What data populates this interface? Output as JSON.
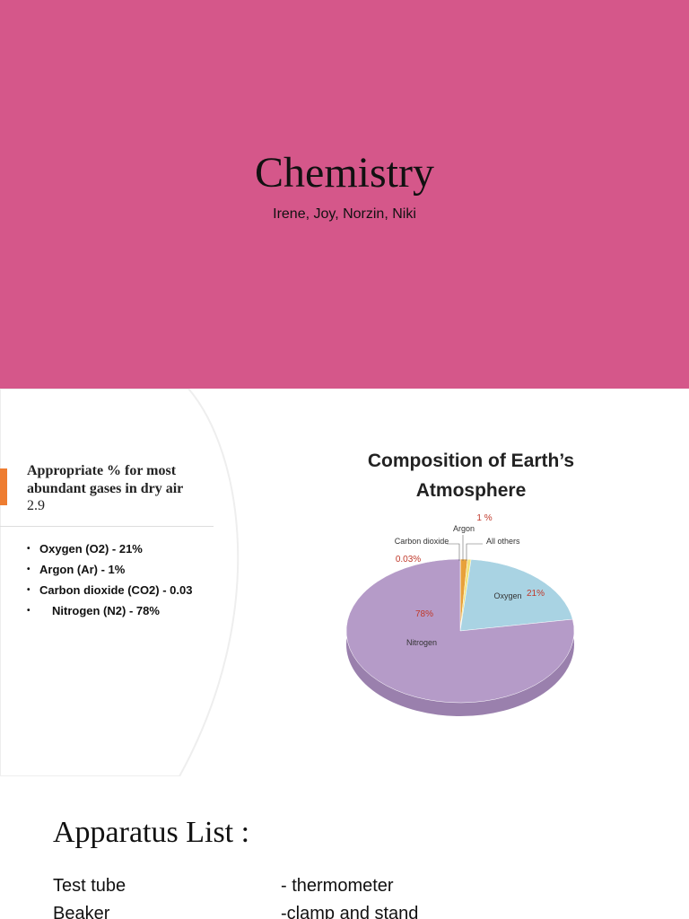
{
  "title_slide": {
    "title": "Chemistry",
    "subtitle": "Irene, Joy, Norzin, Niki"
  },
  "gases_slide": {
    "heading": "Appropriate % for most abundant gases in dry air",
    "number": "2.9",
    "bullets": [
      "Oxygen (O2) - 21%",
      "Argon (Ar) - 1%",
      "Carbon dioxide (CO2) - 0.03",
      "Nitrogen (N2) - 78%"
    ],
    "chart": {
      "type": "pie",
      "title": "Composition of Earth’s Atmosphere",
      "slices": [
        {
          "name": "Carbon dioxide",
          "value": 0.03,
          "value_label": "0.03%",
          "color": "#d9603b"
        },
        {
          "name": "Argon",
          "value": 1,
          "value_label": "1 %",
          "color": "#e8a13a"
        },
        {
          "name": "All others",
          "value": 0.5,
          "color": "#f2e27a"
        },
        {
          "name": "Oxygen",
          "value": 21,
          "value_label": "21%",
          "color": "#a9d3e3"
        },
        {
          "name": "Nitrogen",
          "value": 78,
          "value_label": "78%",
          "color": "#b59bc8"
        }
      ]
    }
  },
  "apparatus_slide": {
    "title": "Apparatus List :",
    "items": [
      "Test tube",
      "Beaker"
    ],
    "items_right": [
      "- thermometer",
      "-clamp and stand"
    ]
  }
}
